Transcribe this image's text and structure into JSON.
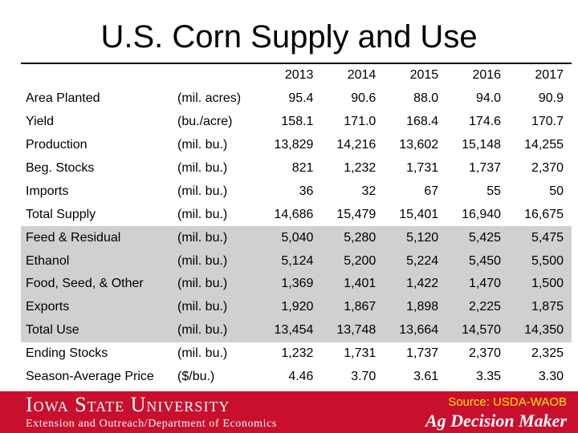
{
  "title": "U.S. Corn Supply and Use",
  "years": [
    "2013",
    "2014",
    "2015",
    "2016",
    "2017"
  ],
  "rows": [
    {
      "label": "Area Planted",
      "unit": "(mil. acres)",
      "values": [
        "95.4",
        "90.6",
        "88.0",
        "94.0",
        "90.9"
      ],
      "shaded": false
    },
    {
      "label": "Yield",
      "unit": "(bu./acre)",
      "values": [
        "158.1",
        "171.0",
        "168.4",
        "174.6",
        "170.7"
      ],
      "shaded": false
    },
    {
      "label": "Production",
      "unit": "(mil. bu.)",
      "values": [
        "13,829",
        "14,216",
        "13,602",
        "15,148",
        "14,255"
      ],
      "shaded": false
    },
    {
      "label": "Beg. Stocks",
      "unit": "(mil. bu.)",
      "values": [
        "821",
        "1,232",
        "1,731",
        "1,737",
        "2,370"
      ],
      "shaded": false
    },
    {
      "label": "Imports",
      "unit": "(mil. bu.)",
      "values": [
        "36",
        "32",
        "67",
        "55",
        "50"
      ],
      "shaded": false
    },
    {
      "label": "Total Supply",
      "unit": "(mil. bu.)",
      "values": [
        "14,686",
        "15,479",
        "15,401",
        "16,940",
        "16,675"
      ],
      "shaded": false
    },
    {
      "label": "Feed & Residual",
      "unit": "(mil. bu.)",
      "values": [
        "5,040",
        "5,280",
        "5,120",
        "5,425",
        "5,475"
      ],
      "shaded": true
    },
    {
      "label": "Ethanol",
      "unit": "(mil. bu.)",
      "values": [
        "5,124",
        "5,200",
        "5,224",
        "5,450",
        "5,500"
      ],
      "shaded": true
    },
    {
      "label": "Food, Seed, & Other",
      "unit": "(mil. bu.)",
      "values": [
        "1,369",
        "1,401",
        "1,422",
        "1,470",
        "1,500"
      ],
      "shaded": true
    },
    {
      "label": "Exports",
      "unit": "(mil. bu.)",
      "values": [
        "1,920",
        "1,867",
        "1,898",
        "2,225",
        "1,875"
      ],
      "shaded": true
    },
    {
      "label": "Total Use",
      "unit": "(mil. bu.)",
      "values": [
        "13,454",
        "13,748",
        "13,664",
        "14,570",
        "14,350"
      ],
      "shaded": true
    },
    {
      "label": "Ending Stocks",
      "unit": "(mil. bu.)",
      "values": [
        "1,232",
        "1,731",
        "1,737",
        "2,370",
        "2,325"
      ],
      "shaded": false
    },
    {
      "label": "Season-Average Price",
      "unit": "($/bu.)",
      "values": [
        "4.46",
        "3.70",
        "3.61",
        "3.35",
        "3.30"
      ],
      "shaded": false
    }
  ],
  "footer": {
    "university": "Iowa State University",
    "department": "Extension and Outreach/Department of Economics",
    "source": "Source: USDA-WAOB",
    "brand": "Ag Decision Maker"
  },
  "colors": {
    "footer_bg": "#c8102e",
    "shade": "#d0d0d0",
    "source_text": "#ffe600"
  }
}
